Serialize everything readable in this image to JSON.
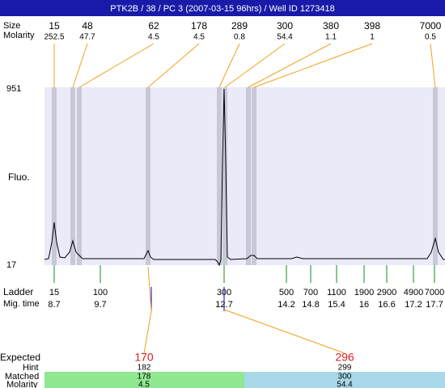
{
  "header": {
    "title": "PTK2B / 38 / PC 3 (2007-03-15 96hrs) / Well ID 1273418"
  },
  "peaks": {
    "size_label": "Size",
    "molarity_label": "Molarity",
    "items": [
      {
        "size": "15",
        "molarity": "252.5"
      },
      {
        "size": "48",
        "molarity": "47.7"
      },
      {
        "size": "62",
        "molarity": "4.5"
      },
      {
        "size": "178",
        "molarity": "4.5"
      },
      {
        "size": "289",
        "molarity": "0.8"
      },
      {
        "size": "300",
        "molarity": "54.4"
      },
      {
        "size": "380",
        "molarity": "1.1"
      },
      {
        "size": "398",
        "molarity": "1"
      },
      {
        "size": "7000",
        "molarity": "0.5"
      }
    ]
  },
  "plot": {
    "ymax": "951",
    "ymin": "17",
    "ylabel": "Fluo."
  },
  "ladder": {
    "label": "Ladder",
    "mig_label": "Mig. time",
    "items": [
      {
        "size": "15",
        "time": "8.7"
      },
      {
        "size": "100",
        "time": "9.7"
      },
      {
        "size": "300",
        "time": "12.7"
      },
      {
        "size": "500",
        "time": "14.2"
      },
      {
        "size": "700",
        "time": "14.8"
      },
      {
        "size": "1100",
        "time": "15.4"
      },
      {
        "size": "1900",
        "time": "16"
      },
      {
        "size": "2900",
        "time": "16.6"
      },
      {
        "size": "4900",
        "time": "17.2"
      },
      {
        "size": "7000",
        "time": "17.7"
      }
    ]
  },
  "expected": {
    "label": "Expected",
    "hint_label": "Hint",
    "matched_label": "Matched",
    "molarity_label": "Molarity",
    "items": [
      {
        "expected": "170",
        "hint": "182",
        "matched": "178",
        "molarity": "4.5"
      },
      {
        "expected": "296",
        "hint": "299",
        "matched": "300",
        "molarity": "54.4"
      }
    ]
  }
}
